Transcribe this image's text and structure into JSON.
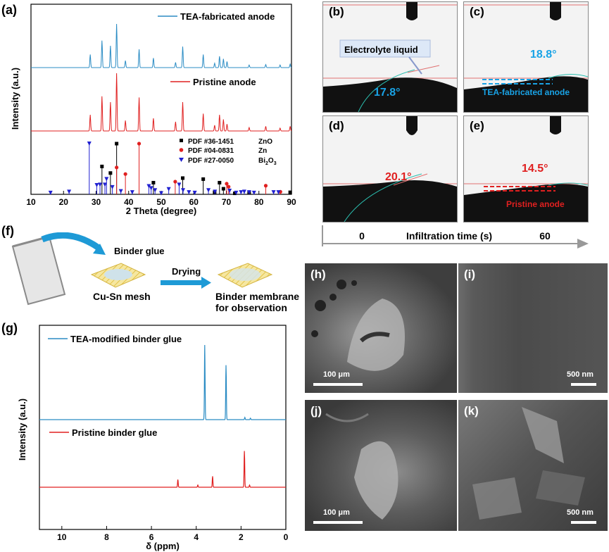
{
  "panels": {
    "a": "(a)",
    "b": "(b)",
    "c": "(c)",
    "d": "(d)",
    "e": "(e)",
    "f": "(f)",
    "g": "(g)",
    "h": "(h)",
    "i": "(i)",
    "j": "(j)",
    "k": "(k)"
  },
  "chart_data": [
    {
      "type": "line",
      "panel": "a",
      "xlabel": "2 Theta (degree)",
      "ylabel": "Intensity (a.u.)",
      "xlim": [
        10,
        90
      ],
      "xticks": [
        10,
        20,
        30,
        40,
        50,
        60,
        70,
        80,
        90
      ],
      "series": [
        {
          "name": "TEA-fabricated anode",
          "color": "#2b8cc4",
          "peaks": [
            [
              28.2,
              0.3
            ],
            [
              31.8,
              0.62
            ],
            [
              34.4,
              0.5
            ],
            [
              36.3,
              1.0
            ],
            [
              39.0,
              0.16
            ],
            [
              43.2,
              0.42
            ],
            [
              47.6,
              0.22
            ],
            [
              54.4,
              0.12
            ],
            [
              56.6,
              0.48
            ],
            [
              62.9,
              0.3
            ],
            [
              66.4,
              0.1
            ],
            [
              67.9,
              0.26
            ],
            [
              69.1,
              0.2
            ],
            [
              70.2,
              0.14
            ],
            [
              77.0,
              0.06
            ],
            [
              82.1,
              0.07
            ],
            [
              86.5,
              0.06
            ],
            [
              89.6,
              0.08
            ]
          ]
        },
        {
          "name": "Pristine anode",
          "color": "#e02020",
          "peaks": [
            [
              28.2,
              0.28
            ],
            [
              31.8,
              0.6
            ],
            [
              34.4,
              0.5
            ],
            [
              36.3,
              1.0
            ],
            [
              39.0,
              0.18
            ],
            [
              43.2,
              0.58
            ],
            [
              47.6,
              0.22
            ],
            [
              54.4,
              0.16
            ],
            [
              56.6,
              0.5
            ],
            [
              62.9,
              0.3
            ],
            [
              66.4,
              0.1
            ],
            [
              67.9,
              0.28
            ],
            [
              69.1,
              0.2
            ],
            [
              70.2,
              0.12
            ],
            [
              77.0,
              0.06
            ],
            [
              82.1,
              0.08
            ],
            [
              86.5,
              0.05
            ],
            [
              89.6,
              0.08
            ]
          ]
        }
      ],
      "references": [
        {
          "name": "PDF #36-1451",
          "phase": "ZnO",
          "marker": "square",
          "color": "#000000",
          "lines": [
            [
              31.8,
              0.55
            ],
            [
              34.4,
              0.42
            ],
            [
              36.3,
              1.0
            ],
            [
              47.6,
              0.23
            ],
            [
              56.6,
              0.32
            ],
            [
              62.9,
              0.3
            ],
            [
              66.4,
              0.04
            ],
            [
              67.9,
              0.23
            ],
            [
              69.1,
              0.11
            ],
            [
              72.6,
              0.02
            ],
            [
              77.0,
              0.04
            ],
            [
              89.6,
              0.04
            ]
          ]
        },
        {
          "name": "PDF #04-0831",
          "phase": "Zn",
          "marker": "circle",
          "color": "#e02020",
          "lines": [
            [
              36.3,
              0.53
            ],
            [
              39.0,
              0.4
            ],
            [
              43.2,
              1.0
            ],
            [
              54.3,
              0.25
            ],
            [
              70.1,
              0.21
            ],
            [
              70.7,
              0.15
            ],
            [
              82.1,
              0.17
            ],
            [
              86.6,
              0.05
            ]
          ]
        },
        {
          "name": "PDF #27-0050",
          "phase": "Bi2O3",
          "marker": "triangle",
          "color": "#2020d0",
          "lines": [
            [
              16.0,
              0.03
            ],
            [
              21.7,
              0.05
            ],
            [
              27.9,
              1.0
            ],
            [
              30.2,
              0.18
            ],
            [
              31.2,
              0.19
            ],
            [
              32.7,
              0.19
            ],
            [
              33.2,
              0.3
            ],
            [
              35.0,
              0.14
            ],
            [
              37.6,
              0.06
            ],
            [
              41.1,
              0.04
            ],
            [
              46.2,
              0.16
            ],
            [
              46.9,
              0.12
            ],
            [
              48.1,
              0.08
            ],
            [
              50.0,
              0.02
            ],
            [
              52.3,
              0.1
            ],
            [
              55.5,
              0.19
            ],
            [
              56.7,
              0.08
            ],
            [
              58.5,
              0.04
            ],
            [
              60.3,
              0.03
            ],
            [
              64.5,
              0.08
            ],
            [
              66.5,
              0.05
            ],
            [
              71.0,
              0.07
            ],
            [
              73.0,
              0.03
            ],
            [
              74.5,
              0.04
            ],
            [
              75.5,
              0.05
            ],
            [
              77.0,
              0.04
            ],
            [
              78.5,
              0.03
            ],
            [
              84.5,
              0.04
            ],
            [
              86.0,
              0.04
            ]
          ]
        }
      ]
    },
    {
      "type": "line",
      "panel": "g",
      "xlabel": "δ (ppm)",
      "ylabel": "Intensity (a.u.)",
      "xlim": [
        11,
        0
      ],
      "xticks": [
        10,
        8,
        6,
        4,
        2,
        0
      ],
      "series": [
        {
          "name": "TEA-modified binder glue",
          "color": "#2b8cc4",
          "peaks": [
            [
              3.62,
              1.0
            ],
            [
              2.67,
              0.73
            ],
            [
              1.83,
              0.03
            ],
            [
              1.58,
              0.02
            ]
          ]
        },
        {
          "name": "Pristine binder glue",
          "color": "#e02020",
          "peaks": [
            [
              4.82,
              0.07
            ],
            [
              3.93,
              0.02
            ],
            [
              3.27,
              0.1
            ],
            [
              1.85,
              0.33
            ],
            [
              1.62,
              0.02
            ]
          ]
        }
      ]
    }
  ],
  "contact": {
    "b": {
      "angle": "17.8°",
      "annotation": "Electrolyte liquid"
    },
    "c": {
      "angle": "18.8°",
      "annotation": "TEA-fabricated anode"
    },
    "d": {
      "angle": "20.1°"
    },
    "e": {
      "angle": "14.5°",
      "annotation": "Pristine anode"
    },
    "axis": {
      "label": "Infiltration time (s)",
      "start": "0",
      "end": "60"
    }
  },
  "schematic": {
    "binder_glue": "Binder glue",
    "mesh": "Cu-Sn mesh",
    "drying": "Drying",
    "membrane_line1": "Binder membrane",
    "membrane_line2": "for observation"
  },
  "sem": {
    "h": "100 μm",
    "i": "500 nm",
    "j": "100 μm",
    "k": "500 nm"
  },
  "colors": {
    "blue": "#2b8cc4",
    "red": "#e02020",
    "cyan": "#19a3e6",
    "refblue": "#2020d0"
  }
}
